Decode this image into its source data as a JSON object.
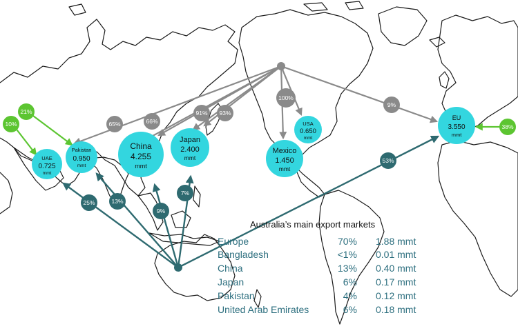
{
  "colors": {
    "market_bubble": "#33d6df",
    "grey_flow": "#8a8a8a",
    "green_flow": "#5cc531",
    "teal_flow": "#2e6a70"
  },
  "unit": "mmt",
  "markets": [
    {
      "name": "UAE",
      "value": "0.725"
    },
    {
      "name": "Pakistan",
      "value": "0.950"
    },
    {
      "name": "China",
      "value": "4.255"
    },
    {
      "name": "Japan",
      "value": "2.400"
    },
    {
      "name": "Mexico",
      "value": "1.450"
    },
    {
      "name": "USA",
      "value": "0.650"
    },
    {
      "name": "EU",
      "value": "3.550"
    }
  ],
  "us_flows": [
    "65%",
    "66%",
    "91%",
    "93%",
    "100%",
    "9%"
  ],
  "other_flows": [
    "21%",
    "10%",
    "38%"
  ],
  "australia_flows": [
    "25%",
    "13%",
    "9%",
    "7%",
    "53%"
  ],
  "legend": {
    "title": "Australia’s main export markets",
    "rows": [
      {
        "country": "Europe",
        "share": "70%",
        "volume": "1.88 mmt"
      },
      {
        "country": "Bangladesh",
        "share": "<1%",
        "volume": "0.01 mmt"
      },
      {
        "country": "China",
        "share": "13%",
        "volume": "0.40 mmt"
      },
      {
        "country": "Japan",
        "share": "6%",
        "volume": "0.17 mmt"
      },
      {
        "country": "Pakistan",
        "share": "4%",
        "volume": "0.12 mmt"
      },
      {
        "country": "United Arab Emirates",
        "share": "6%",
        "volume": "0.18 mmt"
      }
    ]
  }
}
